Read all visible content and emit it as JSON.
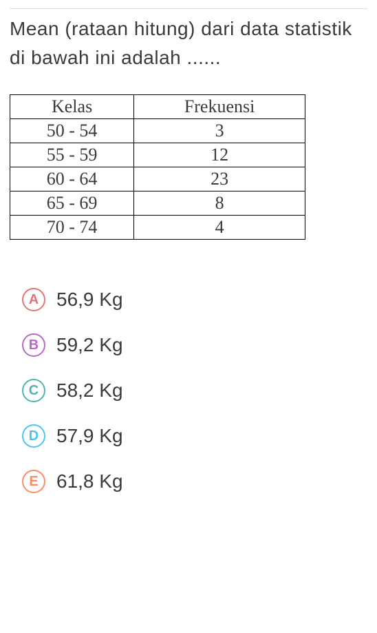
{
  "question": "Mean (rataan hitung) dari data statistik di bawah ini adalah ......",
  "table": {
    "headers": [
      "Kelas",
      "Frekuensi"
    ],
    "rows": [
      [
        "50 - 54",
        "3"
      ],
      [
        "55 - 59",
        "12"
      ],
      [
        "60 - 64",
        "23"
      ],
      [
        "65 - 69",
        "8"
      ],
      [
        "70 - 74",
        "4"
      ]
    ],
    "border_color": "#000000",
    "font_family": "Times New Roman",
    "header_fontsize": 26,
    "cell_fontsize": 26
  },
  "options": [
    {
      "letter": "A",
      "text": "56,9 Kg",
      "color": "#e57373"
    },
    {
      "letter": "B",
      "text": "59,2 Kg",
      "color": "#ba68c8"
    },
    {
      "letter": "C",
      "text": "58,2 Kg",
      "color": "#4db6ac"
    },
    {
      "letter": "D",
      "text": "57,9 Kg",
      "color": "#4fc3f7"
    },
    {
      "letter": "E",
      "text": "61,8 Kg",
      "color": "#ff8a65"
    }
  ]
}
